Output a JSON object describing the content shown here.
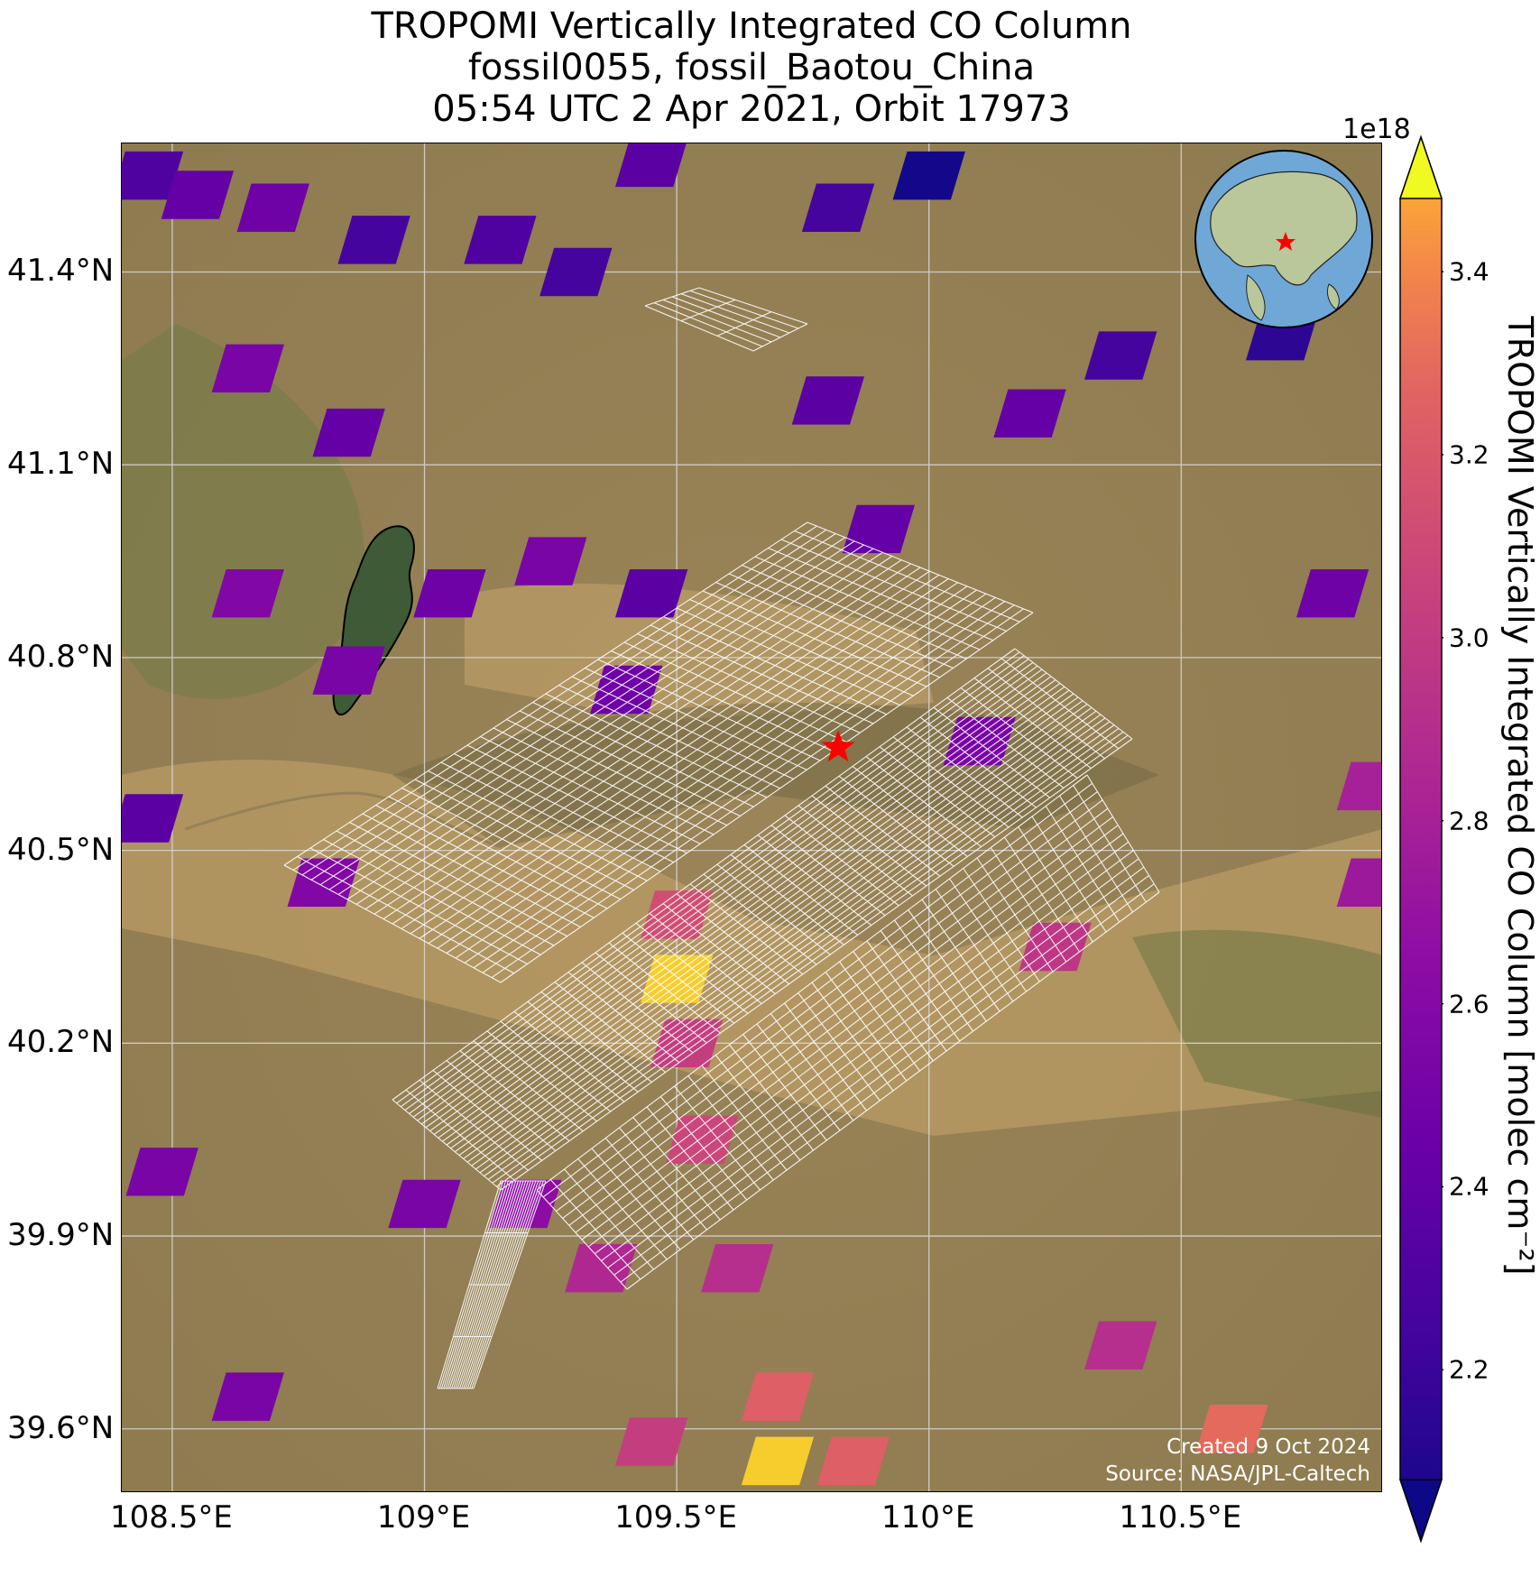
{
  "figure": {
    "title_lines": [
      "TROPOMI Vertically Integrated CO Column",
      "fossil0055, fossil_Baotou_China",
      "05:54 UTC 2 Apr 2021, Orbit 17973"
    ],
    "credits": [
      "Created 9 Oct 2024",
      "Source: NASA/JPL-Caltech"
    ]
  },
  "map": {
    "lon_range": [
      108.4,
      110.9
    ],
    "lat_range": [
      39.5,
      41.6
    ],
    "lon_ticks": [
      "108.5°E",
      "109°E",
      "109.5°E",
      "110°E",
      "110.5°E"
    ],
    "lat_ticks": [
      "41.4°N",
      "41.1°N",
      "40.8°N",
      "40.5°N",
      "40.2°N",
      "39.9°N",
      "39.6°N"
    ],
    "target_marker": {
      "symbol": "red-star",
      "lon": 109.82,
      "lat": 40.66
    },
    "basemap": "satellite imagery",
    "inset_globe": "Asia globe with red star at target"
  },
  "colorbar": {
    "label": "TROPOMI Vertically Integrated CO Column [molec cm⁻²]",
    "exponent": "1e18",
    "ticks": [
      "2.2",
      "2.4",
      "2.6",
      "2.8",
      "3.0",
      "3.2",
      "3.4"
    ],
    "colormap": "plasma",
    "extend": "both"
  },
  "chart_data": {
    "type": "heatmap",
    "title": "TROPOMI Vertically Integrated CO Column",
    "xlabel": "",
    "ylabel": "",
    "xlim": [
      108.4,
      110.9
    ],
    "ylim": [
      39.5,
      41.6
    ],
    "value_units": "1e18 molec cm-2",
    "pixels": [
      {
        "lon": 108.45,
        "lat": 41.55,
        "value": 2.35
      },
      {
        "lon": 108.55,
        "lat": 41.52,
        "value": 2.45
      },
      {
        "lon": 108.7,
        "lat": 41.5,
        "value": 2.5
      },
      {
        "lon": 108.9,
        "lat": 41.45,
        "value": 2.3
      },
      {
        "lon": 109.15,
        "lat": 41.45,
        "value": 2.35
      },
      {
        "lon": 109.3,
        "lat": 41.4,
        "value": 2.3
      },
      {
        "lon": 109.45,
        "lat": 41.57,
        "value": 2.4
      },
      {
        "lon": 110.0,
        "lat": 41.55,
        "value": 2.1
      },
      {
        "lon": 109.82,
        "lat": 41.5,
        "value": 2.3
      },
      {
        "lon": 109.8,
        "lat": 41.2,
        "value": 2.4
      },
      {
        "lon": 109.9,
        "lat": 41.0,
        "value": 2.45
      },
      {
        "lon": 110.38,
        "lat": 41.27,
        "value": 2.3
      },
      {
        "lon": 110.2,
        "lat": 41.18,
        "value": 2.45
      },
      {
        "lon": 110.7,
        "lat": 41.3,
        "value": 2.2
      },
      {
        "lon": 110.8,
        "lat": 40.9,
        "value": 2.5
      },
      {
        "lon": 110.88,
        "lat": 40.6,
        "value": 2.8
      },
      {
        "lon": 110.88,
        "lat": 40.45,
        "value": 2.75
      },
      {
        "lon": 108.65,
        "lat": 41.25,
        "value": 2.55
      },
      {
        "lon": 108.85,
        "lat": 41.15,
        "value": 2.45
      },
      {
        "lon": 108.65,
        "lat": 40.9,
        "value": 2.6
      },
      {
        "lon": 109.05,
        "lat": 40.9,
        "value": 2.5
      },
      {
        "lon": 108.85,
        "lat": 40.78,
        "value": 2.55
      },
      {
        "lon": 109.25,
        "lat": 40.95,
        "value": 2.55
      },
      {
        "lon": 109.4,
        "lat": 40.75,
        "value": 2.5
      },
      {
        "lon": 109.45,
        "lat": 40.9,
        "value": 2.4
      },
      {
        "lon": 108.45,
        "lat": 40.55,
        "value": 2.4
      },
      {
        "lon": 108.8,
        "lat": 40.45,
        "value": 2.6
      },
      {
        "lon": 110.1,
        "lat": 40.67,
        "value": 2.55
      },
      {
        "lon": 109.5,
        "lat": 40.4,
        "value": 3.1
      },
      {
        "lon": 109.5,
        "lat": 40.3,
        "value": 3.45
      },
      {
        "lon": 109.52,
        "lat": 40.2,
        "value": 3.0
      },
      {
        "lon": 110.25,
        "lat": 40.35,
        "value": 2.95
      },
      {
        "lon": 108.48,
        "lat": 40.0,
        "value": 2.55
      },
      {
        "lon": 109.0,
        "lat": 39.95,
        "value": 2.55
      },
      {
        "lon": 109.2,
        "lat": 39.95,
        "value": 2.65
      },
      {
        "lon": 109.35,
        "lat": 39.85,
        "value": 2.85
      },
      {
        "lon": 109.55,
        "lat": 40.05,
        "value": 3.05
      },
      {
        "lon": 109.62,
        "lat": 39.85,
        "value": 2.9
      },
      {
        "lon": 109.7,
        "lat": 39.65,
        "value": 3.2
      },
      {
        "lon": 109.7,
        "lat": 39.55,
        "value": 3.45
      },
      {
        "lon": 109.85,
        "lat": 39.55,
        "value": 3.2
      },
      {
        "lon": 109.45,
        "lat": 39.58,
        "value": 3.0
      },
      {
        "lon": 110.38,
        "lat": 39.73,
        "value": 2.9
      },
      {
        "lon": 110.6,
        "lat": 39.6,
        "value": 3.25
      },
      {
        "lon": 108.65,
        "lat": 39.65,
        "value": 2.55
      }
    ]
  }
}
